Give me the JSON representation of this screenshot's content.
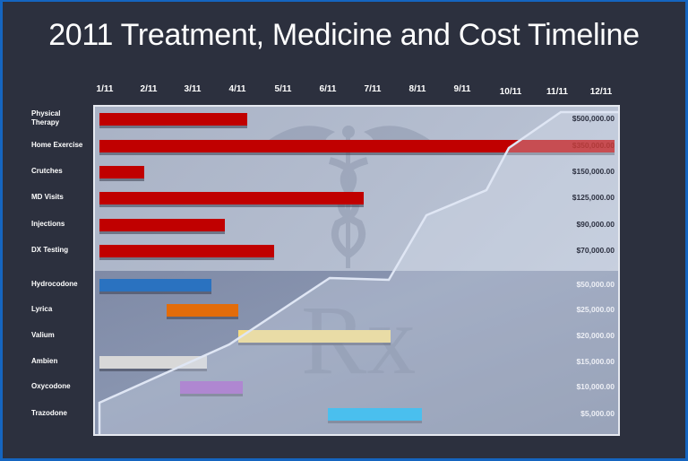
{
  "title": "2011 Treatment, Medicine and Cost Timeline",
  "chart_data": {
    "type": "bar",
    "subtype": "gantt-timeline-with-cumulative-cost-line",
    "title": "2011 Treatment, Medicine and Cost Timeline",
    "x_ticks": [
      "1/11",
      "2/11",
      "3/11",
      "4/11",
      "5/11",
      "6/11",
      "7/11",
      "8/11",
      "9/11",
      "10/11",
      "11/11",
      "12/11"
    ],
    "categories": [
      "Physical Therapy",
      "Home Exercise",
      "Crutches",
      "MD Visits",
      "Injections",
      "DX Testing",
      "Hydrocodone",
      "Lyrica",
      "Valium",
      "Ambien",
      "Oxycodone",
      "Trazodone"
    ],
    "treatments": [
      {
        "label": "Physical Therapy",
        "start": 1.0,
        "end": 4.3,
        "color": "#c00000"
      },
      {
        "label": "Home Exercise",
        "start": 1.0,
        "end": 12.5,
        "color": "#c00000"
      },
      {
        "label": "Crutches",
        "start": 1.0,
        "end": 2.0,
        "color": "#c00000"
      },
      {
        "label": "MD Visits",
        "start": 1.0,
        "end": 6.9,
        "color": "#c00000"
      },
      {
        "label": "Injections",
        "start": 1.0,
        "end": 3.8,
        "color": "#c00000"
      },
      {
        "label": "DX Testing",
        "start": 1.0,
        "end": 4.9,
        "color": "#c00000"
      }
    ],
    "medicines": [
      {
        "label": "Hydrocodone",
        "start": 1.0,
        "end": 3.5,
        "color": "#2a72c0"
      },
      {
        "label": "Lyrica",
        "start": 2.5,
        "end": 4.1,
        "color": "#e36c0a"
      },
      {
        "label": "Valium",
        "start": 4.1,
        "end": 7.5,
        "color": "#f5dc82"
      },
      {
        "label": "Ambien",
        "start": 1.0,
        "end": 3.4,
        "color": "#d8d8d8"
      },
      {
        "label": "Oxycodone",
        "start": 2.8,
        "end": 4.2,
        "color": "#9b59c4"
      },
      {
        "label": "Trazodone",
        "start": 6.1,
        "end": 8.2,
        "color": "#00b0f0"
      }
    ],
    "cost_axis_labels": [
      "$500,000.00",
      "$350,000.00",
      "$150,000.00",
      "$125,000.00",
      "$90,000.00",
      "$70,000.00",
      "$50,000.00",
      "$25,000.00",
      "$20,000.00",
      "$15,000.00",
      "$10,000.00",
      "$5,000.00"
    ],
    "cumulative_cost_line": {
      "x": [
        1.0,
        4.0,
        6.0,
        7.3,
        8.1,
        9.4,
        10.0,
        11.1,
        12.5
      ],
      "y_label": [
        "$5,000",
        "$15,000",
        "$50,000",
        "$50,000",
        "$90,000",
        "$125,000",
        "$350,000",
        "$500,000",
        "$500,000"
      ]
    }
  },
  "cost_labels": [
    "$500,000.00",
    "$350,000.00",
    "$150,000.00",
    "$125,000.00",
    "$90,000.00",
    "$70,000.00",
    "$50,000.00",
    "$25,000.00",
    "$20,000.00",
    "$15,000.00",
    "$10,000.00",
    "$5,000.00"
  ],
  "watermarks": {
    "top": "caduceus-icon",
    "bottom": "Rx"
  }
}
